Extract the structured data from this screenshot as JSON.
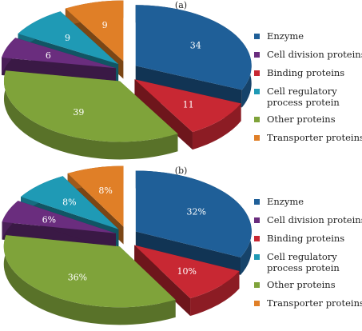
{
  "chart_data": [
    {
      "type": "pie",
      "panel_label": "(a)",
      "categories": [
        "Enzyme",
        "Binding proteins",
        "Other proteins",
        "Cell division proteins",
        "Cell regulatory process protein",
        "Transporter proteins"
      ],
      "values": [
        34,
        11,
        39,
        6,
        9,
        9
      ],
      "value_labels": [
        "34",
        "11",
        "39",
        "6",
        "9",
        "9"
      ],
      "colors": [
        "#1F5F98",
        "#C82833",
        "#7FA33A",
        "#6A2D7E",
        "#1F9AB5",
        "#E07F27"
      ],
      "legend_placement": "right",
      "exploded_3d": true
    },
    {
      "type": "pie",
      "panel_label": "(b)",
      "categories": [
        "Enzyme",
        "Binding proteins",
        "Other proteins",
        "Cell division proteins",
        "Cell regulatory process protein",
        "Transporter proteins"
      ],
      "values": [
        32,
        10,
        36,
        6,
        8,
        8
      ],
      "value_labels": [
        "32%",
        "10%",
        "36%",
        "6%",
        "8%",
        "8%"
      ],
      "colors": [
        "#1F5F98",
        "#C82833",
        "#7FA33A",
        "#6A2D7E",
        "#1F9AB5",
        "#E07F27"
      ],
      "legend_placement": "right",
      "exploded_3d": true
    }
  ],
  "legend": [
    {
      "label": "Enzyme",
      "color": "#1F5F98"
    },
    {
      "label": "Cell division proteins",
      "color": "#6A2D7E"
    },
    {
      "label": "Binding proteins",
      "color": "#C82833"
    },
    {
      "label": "Cell regulatory process protein",
      "color": "#1F9AB5"
    },
    {
      "label": "Other proteins",
      "color": "#7FA33A"
    },
    {
      "label": "Transporter proteins",
      "color": "#E07F27"
    }
  ]
}
